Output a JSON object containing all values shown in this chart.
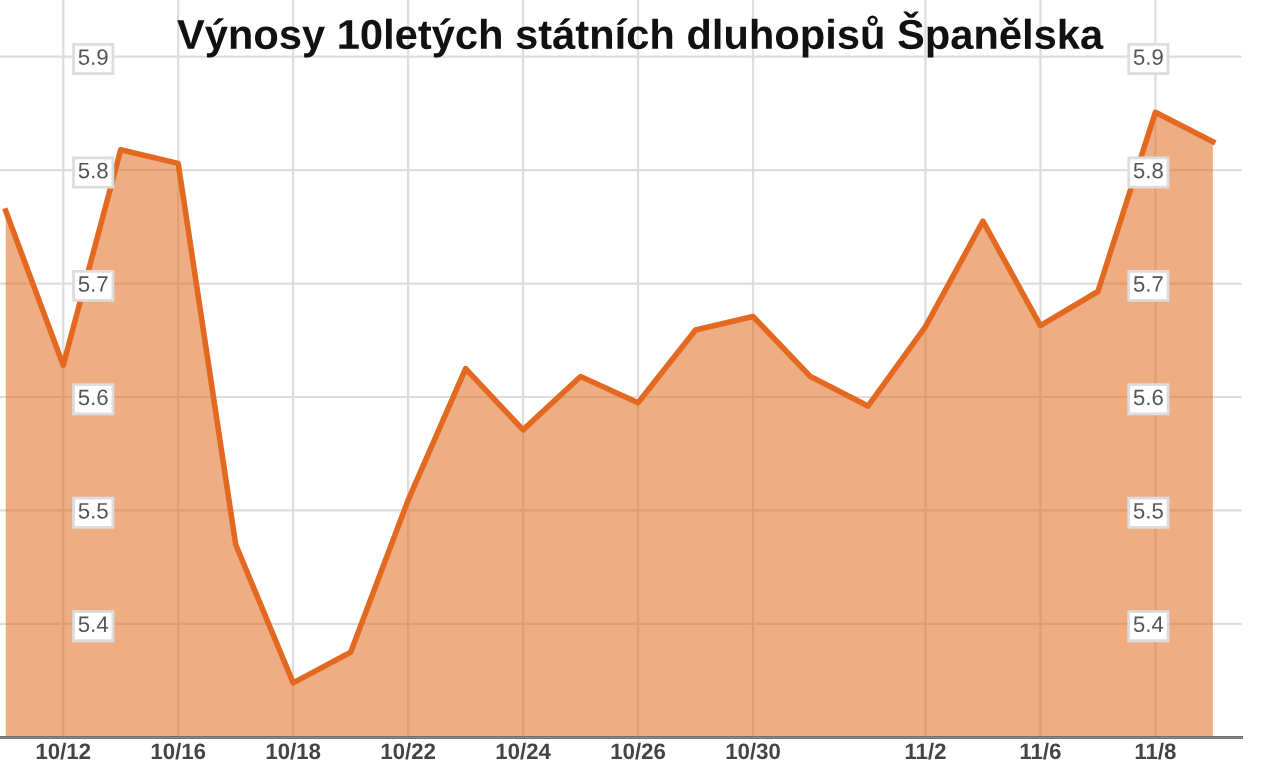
{
  "chart_data": {
    "type": "area",
    "title": "Výnosy 10letých státních dluhopisů Španělska",
    "categories": [
      null,
      "10/12",
      null,
      "10/16",
      null,
      "10/18",
      null,
      "10/22",
      null,
      "10/24",
      null,
      "10/26",
      null,
      "10/30",
      null,
      null,
      "11/2",
      null,
      "11/6",
      null,
      "11/8",
      null
    ],
    "series": [
      {
        "color": "#e2691f",
        "values": [
          5.764,
          5.628,
          5.818,
          5.806,
          5.47,
          5.348,
          5.375,
          5.509,
          5.625,
          5.571,
          5.618,
          5.595,
          5.659,
          5.671,
          5.618,
          5.592,
          5.662,
          5.755,
          5.663,
          5.693,
          5.851,
          5.825
        ]
      }
    ],
    "ylim": [
      5.3,
      5.95
    ],
    "yticks": [
      5.4,
      5.5,
      5.6,
      5.7,
      5.8,
      5.9
    ],
    "y2lim": [
      5.3,
      5.95
    ],
    "y2ticks": [
      5.4,
      5.5,
      5.6,
      5.7,
      5.8,
      5.9
    ],
    "grid": true,
    "legend": false
  }
}
